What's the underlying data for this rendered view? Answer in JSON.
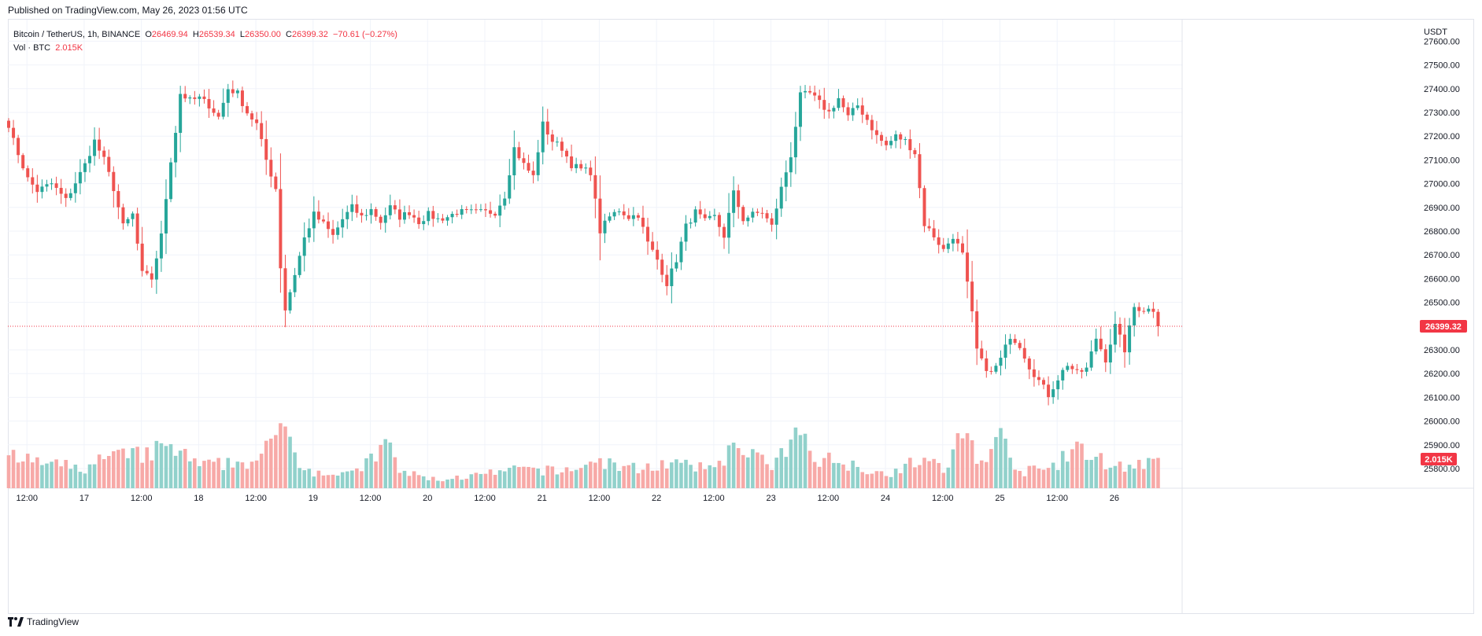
{
  "published": "Published on TradingView.com, May 26, 2023 01:56 UTC",
  "legend": {
    "symbol": "Bitcoin / TetherUS, 1h, BINANCE",
    "open_label": "O",
    "open": "26469.94",
    "high_label": "H",
    "high": "26539.34",
    "low_label": "L",
    "low": "26350.00",
    "close_label": "C",
    "close": "26399.32",
    "change": "−70.61 (−0.27%)",
    "vol_label": "Vol · BTC",
    "vol": "2.015K"
  },
  "brand": "TradingView",
  "colors": {
    "up": "#26a69a",
    "down": "#ef5350",
    "up_vol": "#91d1cb",
    "down_vol": "#f7a9a7",
    "grid": "#f0f3fa",
    "price_line": "#f23645"
  },
  "chart_data": {
    "type": "candlestick",
    "symbol": "BTCUSDT",
    "interval": "1h",
    "currency": "USDT",
    "y_ticks": [
      27600,
      27500,
      27400,
      27300,
      27200,
      27100,
      27000,
      26900,
      26800,
      26700,
      26600,
      26500,
      26300,
      26200,
      26100,
      26000,
      25900,
      25800
    ],
    "x_ticks": [
      {
        "label": "12:00",
        "index": 4
      },
      {
        "label": "17",
        "index": 16
      },
      {
        "label": "12:00",
        "index": 28
      },
      {
        "label": "18",
        "index": 40
      },
      {
        "label": "12:00",
        "index": 52
      },
      {
        "label": "19",
        "index": 64
      },
      {
        "label": "12:00",
        "index": 76
      },
      {
        "label": "20",
        "index": 88
      },
      {
        "label": "12:00",
        "index": 100
      },
      {
        "label": "21",
        "index": 112
      },
      {
        "label": "12:00",
        "index": 124
      },
      {
        "label": "22",
        "index": 136
      },
      {
        "label": "12:00",
        "index": 148
      },
      {
        "label": "23",
        "index": 160
      },
      {
        "label": "12:00",
        "index": 172
      },
      {
        "label": "24",
        "index": 184
      },
      {
        "label": "12:00",
        "index": 196
      },
      {
        "label": "25",
        "index": 208
      },
      {
        "label": "12:00",
        "index": 220
      },
      {
        "label": "26",
        "index": 232
      }
    ],
    "last_price": 26399.32,
    "last_price_label": "26399.32",
    "last_volume_label": "2.015K",
    "close_keypoints": [
      [
        0,
        27250
      ],
      [
        1,
        27180
      ],
      [
        4,
        27020
      ],
      [
        6,
        26970
      ],
      [
        9,
        27000
      ],
      [
        12,
        26930
      ],
      [
        16,
        27080
      ],
      [
        18,
        27180
      ],
      [
        20,
        27100
      ],
      [
        22,
        26980
      ],
      [
        24,
        26820
      ],
      [
        26,
        26870
      ],
      [
        28,
        26620
      ],
      [
        30,
        26600
      ],
      [
        32,
        26780
      ],
      [
        34,
        27100
      ],
      [
        35,
        27220
      ],
      [
        36,
        27380
      ],
      [
        38,
        27350
      ],
      [
        40,
        27360
      ],
      [
        42,
        27330
      ],
      [
        44,
        27280
      ],
      [
        46,
        27400
      ],
      [
        48,
        27380
      ],
      [
        50,
        27300
      ],
      [
        52,
        27250
      ],
      [
        54,
        27100
      ],
      [
        56,
        26980
      ],
      [
        57,
        26650
      ],
      [
        58,
        26470
      ],
      [
        60,
        26620
      ],
      [
        62,
        26770
      ],
      [
        64,
        26870
      ],
      [
        66,
        26830
      ],
      [
        68,
        26780
      ],
      [
        70,
        26850
      ],
      [
        72,
        26900
      ],
      [
        74,
        26860
      ],
      [
        76,
        26890
      ],
      [
        78,
        26840
      ],
      [
        80,
        26900
      ],
      [
        82,
        26860
      ],
      [
        84,
        26880
      ],
      [
        86,
        26840
      ],
      [
        88,
        26870
      ],
      [
        90,
        26850
      ],
      [
        92,
        26860
      ],
      [
        94,
        26880
      ],
      [
        98,
        26880
      ],
      [
        102,
        26880
      ],
      [
        104,
        26950
      ],
      [
        106,
        27150
      ],
      [
        108,
        27080
      ],
      [
        110,
        27030
      ],
      [
        112,
        27250
      ],
      [
        114,
        27180
      ],
      [
        116,
        27150
      ],
      [
        118,
        27080
      ],
      [
        120,
        27060
      ],
      [
        122,
        27050
      ],
      [
        124,
        26800
      ],
      [
        126,
        26860
      ],
      [
        128,
        26890
      ],
      [
        130,
        26860
      ],
      [
        132,
        26870
      ],
      [
        134,
        26750
      ],
      [
        136,
        26680
      ],
      [
        138,
        26580
      ],
      [
        140,
        26680
      ],
      [
        142,
        26820
      ],
      [
        144,
        26880
      ],
      [
        146,
        26840
      ],
      [
        148,
        26860
      ],
      [
        150,
        26780
      ],
      [
        152,
        26960
      ],
      [
        154,
        26850
      ],
      [
        156,
        26870
      ],
      [
        158,
        26880
      ],
      [
        160,
        26820
      ],
      [
        162,
        26980
      ],
      [
        164,
        27120
      ],
      [
        166,
        27370
      ],
      [
        168,
        27380
      ],
      [
        170,
        27340
      ],
      [
        172,
        27300
      ],
      [
        174,
        27360
      ],
      [
        176,
        27280
      ],
      [
        178,
        27330
      ],
      [
        180,
        27270
      ],
      [
        182,
        27200
      ],
      [
        184,
        27160
      ],
      [
        186,
        27200
      ],
      [
        188,
        27180
      ],
      [
        190,
        27130
      ],
      [
        192,
        26830
      ],
      [
        194,
        26780
      ],
      [
        196,
        26720
      ],
      [
        198,
        26780
      ],
      [
        200,
        26700
      ],
      [
        202,
        26450
      ],
      [
        203,
        26300
      ],
      [
        204,
        26250
      ],
      [
        206,
        26200
      ],
      [
        208,
        26260
      ],
      [
        210,
        26360
      ],
      [
        212,
        26320
      ],
      [
        214,
        26230
      ],
      [
        216,
        26170
      ],
      [
        218,
        26110
      ],
      [
        220,
        26180
      ],
      [
        222,
        26240
      ],
      [
        224,
        26200
      ],
      [
        226,
        26220
      ],
      [
        228,
        26350
      ],
      [
        230,
        26260
      ],
      [
        232,
        26400
      ],
      [
        234,
        26300
      ],
      [
        236,
        26480
      ],
      [
        238,
        26470
      ],
      [
        240,
        26470
      ],
      [
        241,
        26399
      ]
    ],
    "volume_keypoints": [
      [
        0,
        0.55
      ],
      [
        8,
        0.45
      ],
      [
        16,
        0.35
      ],
      [
        20,
        0.55
      ],
      [
        28,
        0.6
      ],
      [
        34,
        0.75
      ],
      [
        40,
        0.4
      ],
      [
        46,
        0.45
      ],
      [
        52,
        0.5
      ],
      [
        56,
        0.85
      ],
      [
        58,
        1.45
      ],
      [
        60,
        0.6
      ],
      [
        64,
        0.3
      ],
      [
        72,
        0.25
      ],
      [
        80,
        0.8
      ],
      [
        82,
        0.3
      ],
      [
        90,
        0.15
      ],
      [
        100,
        0.25
      ],
      [
        108,
        0.35
      ],
      [
        116,
        0.3
      ],
      [
        124,
        0.5
      ],
      [
        130,
        0.35
      ],
      [
        138,
        0.45
      ],
      [
        146,
        0.35
      ],
      [
        154,
        0.8
      ],
      [
        160,
        0.35
      ],
      [
        166,
        1.0
      ],
      [
        170,
        0.55
      ],
      [
        176,
        0.45
      ],
      [
        184,
        0.25
      ],
      [
        192,
        0.55
      ],
      [
        196,
        0.3
      ],
      [
        200,
        1.0
      ],
      [
        204,
        0.5
      ],
      [
        208,
        0.9
      ],
      [
        212,
        0.3
      ],
      [
        218,
        0.35
      ],
      [
        224,
        0.7
      ],
      [
        232,
        0.4
      ],
      [
        241,
        0.45
      ]
    ]
  }
}
